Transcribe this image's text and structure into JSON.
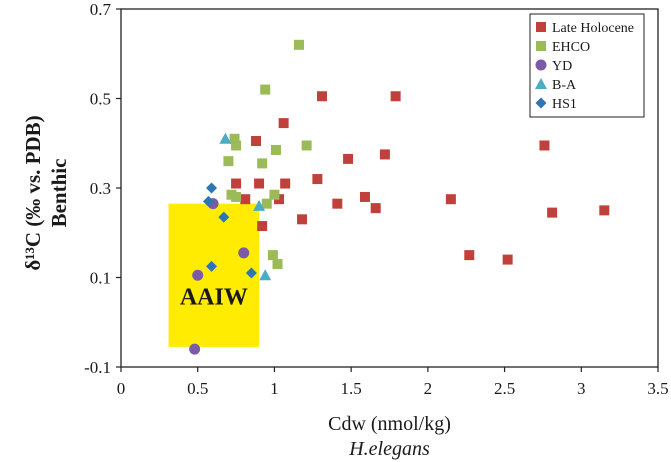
{
  "chart_data": {
    "type": "scatter",
    "xlabel": "Cdw (nmol/kg)",
    "xlabel_sub": "H.elegans",
    "ylabel_line1": "δ¹³C (‰ vs. PDB)",
    "ylabel_line2": "Benthic",
    "xlim": [
      0,
      3.5
    ],
    "ylim": [
      -0.1,
      0.7
    ],
    "x_ticks": [
      0,
      0.5,
      1,
      1.5,
      2,
      2.5,
      3,
      3.5
    ],
    "x_tick_labels": [
      "0",
      "0.5",
      "1",
      "1.5",
      "2",
      "2.5",
      "3",
      "3.5"
    ],
    "y_ticks": [
      -0.1,
      0.1,
      0.3,
      0.5,
      0.7
    ],
    "y_tick_labels": [
      "-0.1",
      "0.1",
      "0.3",
      "0.5",
      "0.7"
    ],
    "grid": false,
    "legend_position": "top-right",
    "annotation": {
      "text": "AAIW",
      "fill": "#ffec00",
      "x_range": [
        0.31,
        0.9
      ],
      "y_range": [
        -0.055,
        0.265
      ]
    },
    "series": [
      {
        "name": "Late Holocene",
        "marker": "square",
        "color": "#c0413b",
        "points": [
          [
            0.75,
            0.31
          ],
          [
            0.81,
            0.275
          ],
          [
            0.88,
            0.405
          ],
          [
            0.9,
            0.31
          ],
          [
            0.92,
            0.215
          ],
          [
            1.03,
            0.275
          ],
          [
            1.06,
            0.445
          ],
          [
            1.07,
            0.31
          ],
          [
            1.18,
            0.23
          ],
          [
            1.28,
            0.32
          ],
          [
            1.31,
            0.505
          ],
          [
            1.41,
            0.265
          ],
          [
            1.48,
            0.365
          ],
          [
            1.59,
            0.28
          ],
          [
            1.66,
            0.255
          ],
          [
            1.72,
            0.375
          ],
          [
            1.79,
            0.505
          ],
          [
            2.15,
            0.275
          ],
          [
            2.27,
            0.15
          ],
          [
            2.52,
            0.14
          ],
          [
            2.76,
            0.395
          ],
          [
            2.81,
            0.245
          ],
          [
            3.15,
            0.25
          ]
        ]
      },
      {
        "name": "EHCO",
        "marker": "square",
        "color": "#9bbb59",
        "points": [
          [
            0.7,
            0.36
          ],
          [
            0.72,
            0.285
          ],
          [
            0.74,
            0.41
          ],
          [
            0.75,
            0.395
          ],
          [
            0.75,
            0.28
          ],
          [
            0.92,
            0.355
          ],
          [
            0.94,
            0.52
          ],
          [
            0.95,
            0.265
          ],
          [
            0.99,
            0.15
          ],
          [
            1.0,
            0.285
          ],
          [
            1.01,
            0.385
          ],
          [
            1.02,
            0.13
          ],
          [
            1.16,
            0.62
          ],
          [
            1.21,
            0.395
          ]
        ]
      },
      {
        "name": "YD",
        "marker": "circle",
        "color": "#7b5aa6",
        "points": [
          [
            0.48,
            -0.06
          ],
          [
            0.5,
            0.105
          ],
          [
            0.6,
            0.265
          ],
          [
            0.8,
            0.155
          ]
        ]
      },
      {
        "name": "B-A",
        "marker": "triangle",
        "color": "#4bacc6",
        "points": [
          [
            0.68,
            0.41
          ],
          [
            0.9,
            0.26
          ],
          [
            0.94,
            0.105
          ]
        ]
      },
      {
        "name": "HS1",
        "marker": "diamond",
        "color": "#2e75b6",
        "points": [
          [
            0.57,
            0.27
          ],
          [
            0.59,
            0.3
          ],
          [
            0.59,
            0.125
          ],
          [
            0.67,
            0.235
          ],
          [
            0.85,
            0.11
          ]
        ]
      }
    ]
  }
}
